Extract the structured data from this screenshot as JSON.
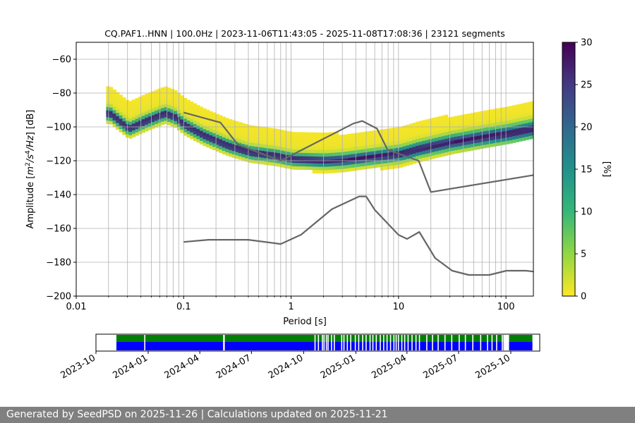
{
  "chart_data": [
    {
      "type": "heatmap",
      "title": "CQ.PAF1..HNN | 100.0Hz | 2023-11-06T11:43:05 - 2025-11-08T17:08:36 | 23121 segments",
      "xlabel": "Period [s]",
      "ylabel_parts": [
        "Amplitude [",
        "m",
        "2",
        "/",
        "s",
        "4",
        "/",
        "Hz",
        "] [dB]"
      ],
      "xscale": "log",
      "xlim": [
        0.01,
        180
      ],
      "ylim": [
        -200,
        -50
      ],
      "x_ticks": [
        0.01,
        0.1,
        1,
        10,
        100
      ],
      "x_tick_labels": [
        "0.01",
        "0.1",
        "1",
        "10",
        "100"
      ],
      "y_ticks": [
        -200,
        -180,
        -160,
        -140,
        -120,
        -100,
        -80,
        -60
      ],
      "y_tick_labels": [
        "−200",
        "−180",
        "−160",
        "−140",
        "−120",
        "−100",
        "−80",
        "−60"
      ],
      "grid": true,
      "colorbar": {
        "label": "[%]",
        "range": [
          0,
          30
        ],
        "ticks": [
          0,
          5,
          10,
          15,
          20,
          25,
          30
        ],
        "tick_labels": [
          "0",
          "5",
          "10",
          "15",
          "20",
          "25",
          "30"
        ],
        "colormap": "viridis_r"
      },
      "psd_mode_curve": {
        "period": [
          0.02,
          0.03,
          0.045,
          0.065,
          0.08,
          0.1,
          0.15,
          0.25,
          0.4,
          0.7,
          1,
          2,
          3,
          5,
          7,
          10,
          15,
          30,
          60,
          100,
          180
        ],
        "db": [
          -93,
          -102,
          -97,
          -93,
          -95,
          -100,
          -106,
          -112,
          -116,
          -118,
          -120,
          -121,
          -120.5,
          -119,
          -118,
          -117,
          -114,
          -110,
          -107,
          -105,
          -102
        ]
      },
      "noise_models": [
        {
          "name": "NHNM",
          "period": [
            0.1,
            0.22,
            0.32,
            0.8,
            3.8,
            4.6,
            6.3,
            7.9,
            15.4,
            20,
            180
          ],
          "db": [
            -91.5,
            -97.4,
            -110.5,
            -120,
            -98,
            -96.5,
            -101,
            -113.5,
            -120,
            -138.5,
            -128.5
          ]
        },
        {
          "name": "NLNM",
          "period": [
            0.1,
            0.17,
            0.4,
            0.8,
            1.24,
            2.4,
            4.3,
            5,
            6,
            10,
            12,
            15.6,
            21.9,
            31.6,
            45,
            70,
            101,
            154,
            180
          ],
          "db": [
            -168,
            -166.7,
            -166.7,
            -169.2,
            -163.7,
            -148.6,
            -141.1,
            -141.1,
            -149,
            -163.8,
            -166.2,
            -162.1,
            -177.5,
            -185,
            -187.5,
            -187.5,
            -185,
            -185,
            -185.5
          ]
        }
      ]
    },
    {
      "type": "timeline",
      "time_range": [
        "2023-10-01",
        "2025-11-21"
      ],
      "x_tick_labels": [
        "2023-10",
        "2024-01",
        "2024-04",
        "2024-07",
        "2024-10",
        "2025-01",
        "2025-04",
        "2025-07",
        "2025-10"
      ],
      "x_tick_dates": [
        "2023-10-01",
        "2024-01-01",
        "2024-04-01",
        "2024-07-01",
        "2024-10-01",
        "2025-01-01",
        "2025-04-01",
        "2025-07-01",
        "2025-10-01"
      ],
      "data_coverage": {
        "color": "#0000ff",
        "start": "2023-11-06",
        "end": "2025-11-08"
      },
      "psd_coverage": {
        "color": "#008000",
        "start": "2023-11-06",
        "end": "2025-11-08"
      },
      "gap_dates": [
        "2023-12-25",
        "2024-05-12",
        "2024-05-13",
        "2024-10-20",
        "2024-10-26",
        "2024-11-02",
        "2024-11-05",
        "2024-11-09",
        "2024-11-12",
        "2024-11-18",
        "2024-11-23",
        "2024-12-06",
        "2024-12-10",
        "2024-12-16",
        "2024-12-22",
        "2024-12-30",
        "2025-01-05",
        "2025-01-12",
        "2025-01-18",
        "2025-01-25",
        "2025-01-30",
        "2025-02-05",
        "2025-02-12",
        "2025-02-18",
        "2025-02-24",
        "2025-03-02",
        "2025-03-08",
        "2025-03-12",
        "2025-03-16",
        "2025-03-22",
        "2025-03-27",
        "2025-04-02",
        "2025-04-09",
        "2025-04-16",
        "2025-04-22",
        "2025-05-05",
        "2025-05-15",
        "2025-05-25",
        "2025-06-06",
        "2025-06-18",
        "2025-07-01",
        "2025-07-12",
        "2025-07-25",
        "2025-08-08",
        "2025-08-20",
        "2025-08-28",
        "2025-09-05",
        "2025-09-15",
        "2025-09-18"
      ]
    }
  ],
  "colors": {
    "footer_bg": "#808080",
    "footer_text": "#ffffff",
    "grid": "#b0b0b0",
    "noise_model": "#666666"
  },
  "footer": {
    "text": "Generated by SeedPSD on 2025-11-26 | Calculations updated on 2025-11-21"
  }
}
